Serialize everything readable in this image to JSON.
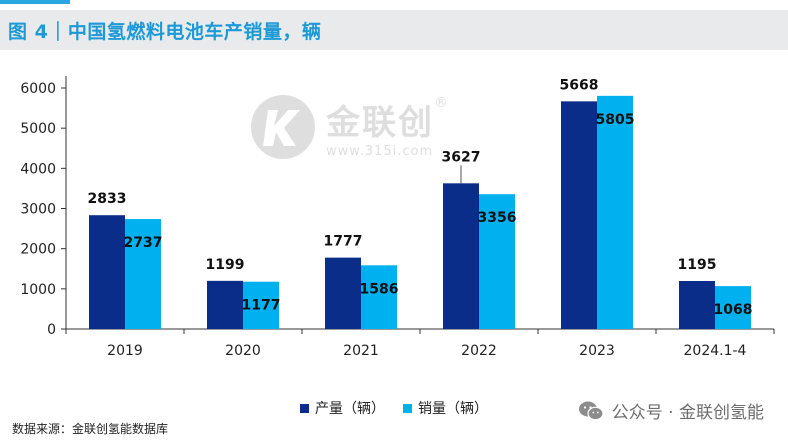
{
  "header": {
    "title": "图 4｜中国氢燃料电池车产销量，辆"
  },
  "watermark": {
    "brand": "金联创",
    "url": "www.315i.com",
    "reg_mark": "®"
  },
  "legend": {
    "production_label": "产量（辆）",
    "sales_label": "销量（辆）"
  },
  "footer": {
    "source": "数据来源：金联创氢能数据库",
    "wechat": "公众号 · 金联创氢能"
  },
  "colors": {
    "production": "#0b2d8a",
    "sales": "#00b0ef",
    "title": "#1d9ad6"
  },
  "chart_data": {
    "type": "bar",
    "title": "中国氢燃料电池车产销量，辆",
    "categories": [
      "2019",
      "2020",
      "2021",
      "2022",
      "2023",
      "2024.1-4"
    ],
    "series": [
      {
        "name": "产量（辆）",
        "values": [
          2833,
          1199,
          1777,
          3627,
          5668,
          1195
        ]
      },
      {
        "name": "销量（辆）",
        "values": [
          2737,
          1177,
          1586,
          3356,
          5805,
          1068
        ]
      }
    ],
    "ylim": [
      0,
      6000
    ],
    "yticks": [
      0,
      1000,
      2000,
      3000,
      4000,
      5000,
      6000
    ],
    "xlabel": "",
    "ylabel": "",
    "grid": false,
    "legend_position": "bottom"
  }
}
